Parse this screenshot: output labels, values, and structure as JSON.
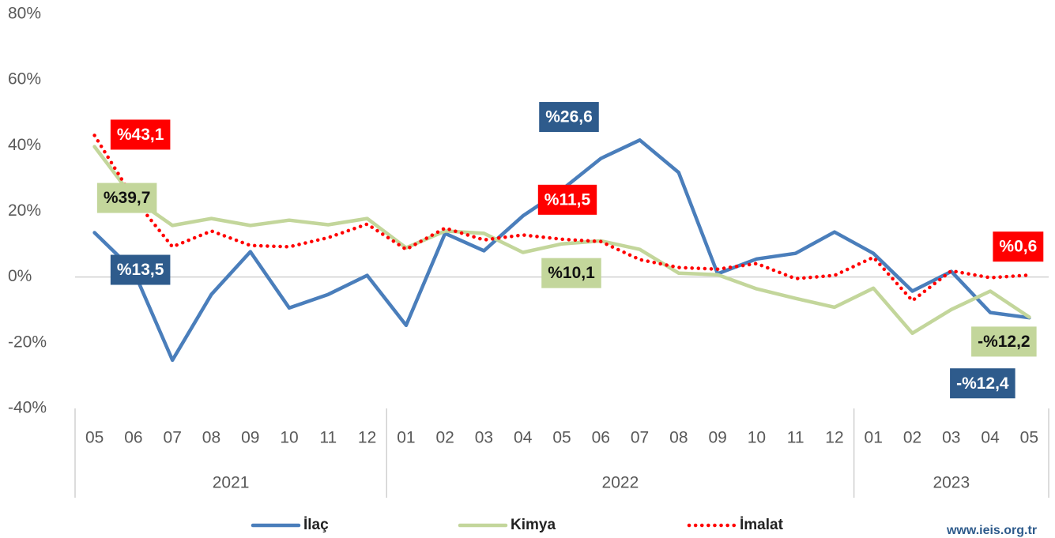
{
  "chart_data": {
    "type": "line",
    "categories": [
      "05",
      "06",
      "07",
      "08",
      "09",
      "10",
      "11",
      "12",
      "01",
      "02",
      "03",
      "04",
      "05",
      "06",
      "07",
      "08",
      "09",
      "10",
      "11",
      "12",
      "01",
      "02",
      "03",
      "04",
      "05"
    ],
    "year_groups": [
      {
        "label": "2021",
        "count": 8
      },
      {
        "label": "2022",
        "count": 12
      },
      {
        "label": "2023",
        "count": 5
      }
    ],
    "ylim": [
      -40,
      80
    ],
    "yticks": [
      {
        "value": -40,
        "label": "-40%"
      },
      {
        "value": -20,
        "label": "-20%"
      },
      {
        "value": 0,
        "label": "0%"
      },
      {
        "value": 20,
        "label": "20%"
      },
      {
        "value": 40,
        "label": "40%"
      },
      {
        "value": 60,
        "label": "60%"
      },
      {
        "value": 80,
        "label": "80%"
      }
    ],
    "series": [
      {
        "name": "İlaç",
        "color": "#4a7ebb",
        "label_color": "#2e5b8c",
        "label_text_color": "#ffffff",
        "dashed": false,
        "values": [
          13.5,
          2,
          -25.3,
          -5.3,
          7.7,
          -9.4,
          -5.3,
          0.5,
          -14.7,
          13.3,
          8,
          18.6,
          26.6,
          36.1,
          41.7,
          31.8,
          1,
          5.5,
          7.2,
          13.7,
          7.2,
          -4.3,
          1.7,
          -10.8,
          -12.4
        ],
        "value_labels": [
          "%13,5",
          null,
          null,
          null,
          null,
          null,
          null,
          null,
          null,
          null,
          null,
          null,
          "%26,6",
          null,
          null,
          null,
          null,
          null,
          null,
          null,
          null,
          null,
          null,
          null,
          "-%12,4"
        ]
      },
      {
        "name": "Kimya",
        "color": "#c3d69b",
        "label_color": "#c3d69b",
        "label_text_color": "#111111",
        "dashed": false,
        "values": [
          39.7,
          24,
          15.7,
          17.8,
          15.7,
          17.3,
          15.9,
          17.8,
          8.9,
          14,
          13.3,
          7.5,
          10.1,
          11,
          8.4,
          1.2,
          0.7,
          -3.6,
          -6.5,
          -9.2,
          -3.4,
          -17.1,
          -9.9,
          -4.3,
          -12.2
        ],
        "value_labels": [
          "%39,7",
          null,
          null,
          null,
          null,
          null,
          null,
          null,
          null,
          null,
          null,
          null,
          "%10,1",
          null,
          null,
          null,
          null,
          null,
          null,
          null,
          null,
          null,
          null,
          null,
          "-%12,2"
        ]
      },
      {
        "name": "İmalat",
        "color": "#ff0000",
        "label_color": "#ff0000",
        "label_text_color": "#ffffff",
        "dashed": true,
        "values": [
          43.1,
          24,
          9.2,
          14,
          9.6,
          9.2,
          12,
          16.1,
          8.4,
          14.9,
          11.3,
          12.8,
          11.5,
          10.8,
          5.3,
          2.9,
          2.4,
          4.1,
          -0.5,
          0.5,
          6,
          -7.2,
          1.9,
          -0.2,
          0.6
        ],
        "value_labels": [
          "%43,1",
          null,
          null,
          null,
          null,
          null,
          null,
          null,
          null,
          null,
          null,
          null,
          "%11,5",
          null,
          null,
          null,
          null,
          null,
          null,
          null,
          null,
          null,
          null,
          null,
          "%0,6"
        ]
      }
    ],
    "watermark": "www.ieis.org.tr"
  }
}
